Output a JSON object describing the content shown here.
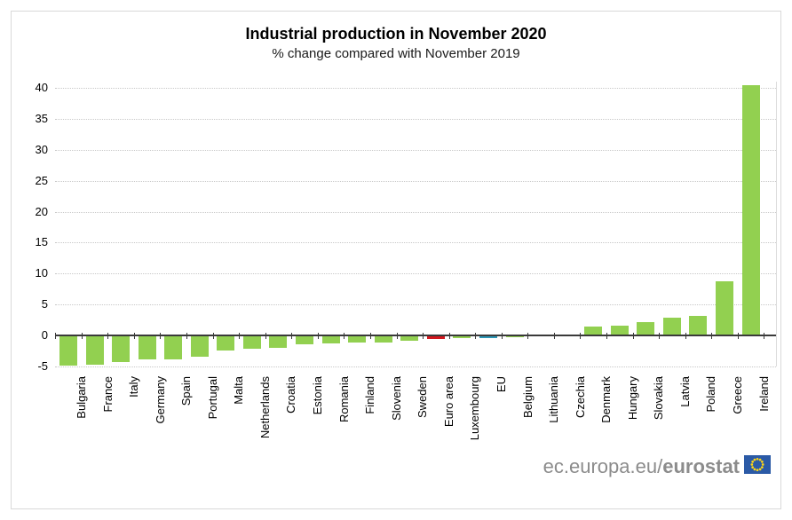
{
  "title": "Industrial production in November 2020",
  "subtitle": "% change compared with November 2019",
  "footer": {
    "url_prefix": "ec.europa.eu/",
    "url_bold": "eurostat",
    "flag_color": "#2b5aa6",
    "flag_star_color": "#ffd617"
  },
  "chart_data": {
    "type": "bar",
    "title": "Industrial production in November 2020",
    "subtitle": "% change compared with November 2019",
    "categories": [
      "Bulgaria",
      "France",
      "Italy",
      "Germany",
      "Spain",
      "Portugal",
      "Malta",
      "Netherlands",
      "Croatia",
      "Estonia",
      "Romania",
      "Finland",
      "Slovenia",
      "Sweden",
      "Euro area",
      "Luxembourg",
      "EU",
      "Belgium",
      "Lithuania",
      "Czechia",
      "Denmark",
      "Hungary",
      "Slovakia",
      "Latvia",
      "Poland",
      "Greece",
      "Ireland"
    ],
    "values": [
      -4.9,
      -4.8,
      -4.3,
      -3.9,
      -3.8,
      -3.5,
      -2.5,
      -2.1,
      -2.0,
      -1.4,
      -1.3,
      -1.2,
      -1.1,
      -0.8,
      -0.6,
      -0.5,
      -0.4,
      -0.3,
      -0.1,
      0.2,
      1.4,
      1.6,
      2.2,
      2.8,
      3.1,
      8.8,
      40.5
    ],
    "xlabel": "",
    "ylabel": "% change",
    "ylim": [
      -5,
      42
    ],
    "yticks": [
      40,
      35,
      30,
      25,
      20,
      15,
      10,
      5,
      0,
      -5
    ],
    "grid": "horizontal-dotted",
    "legend": "none",
    "x_label_rotation": 90,
    "colors": {
      "default": "#92d050",
      "Euro area": "#d2171e",
      "EU": "#2b95b5"
    }
  }
}
